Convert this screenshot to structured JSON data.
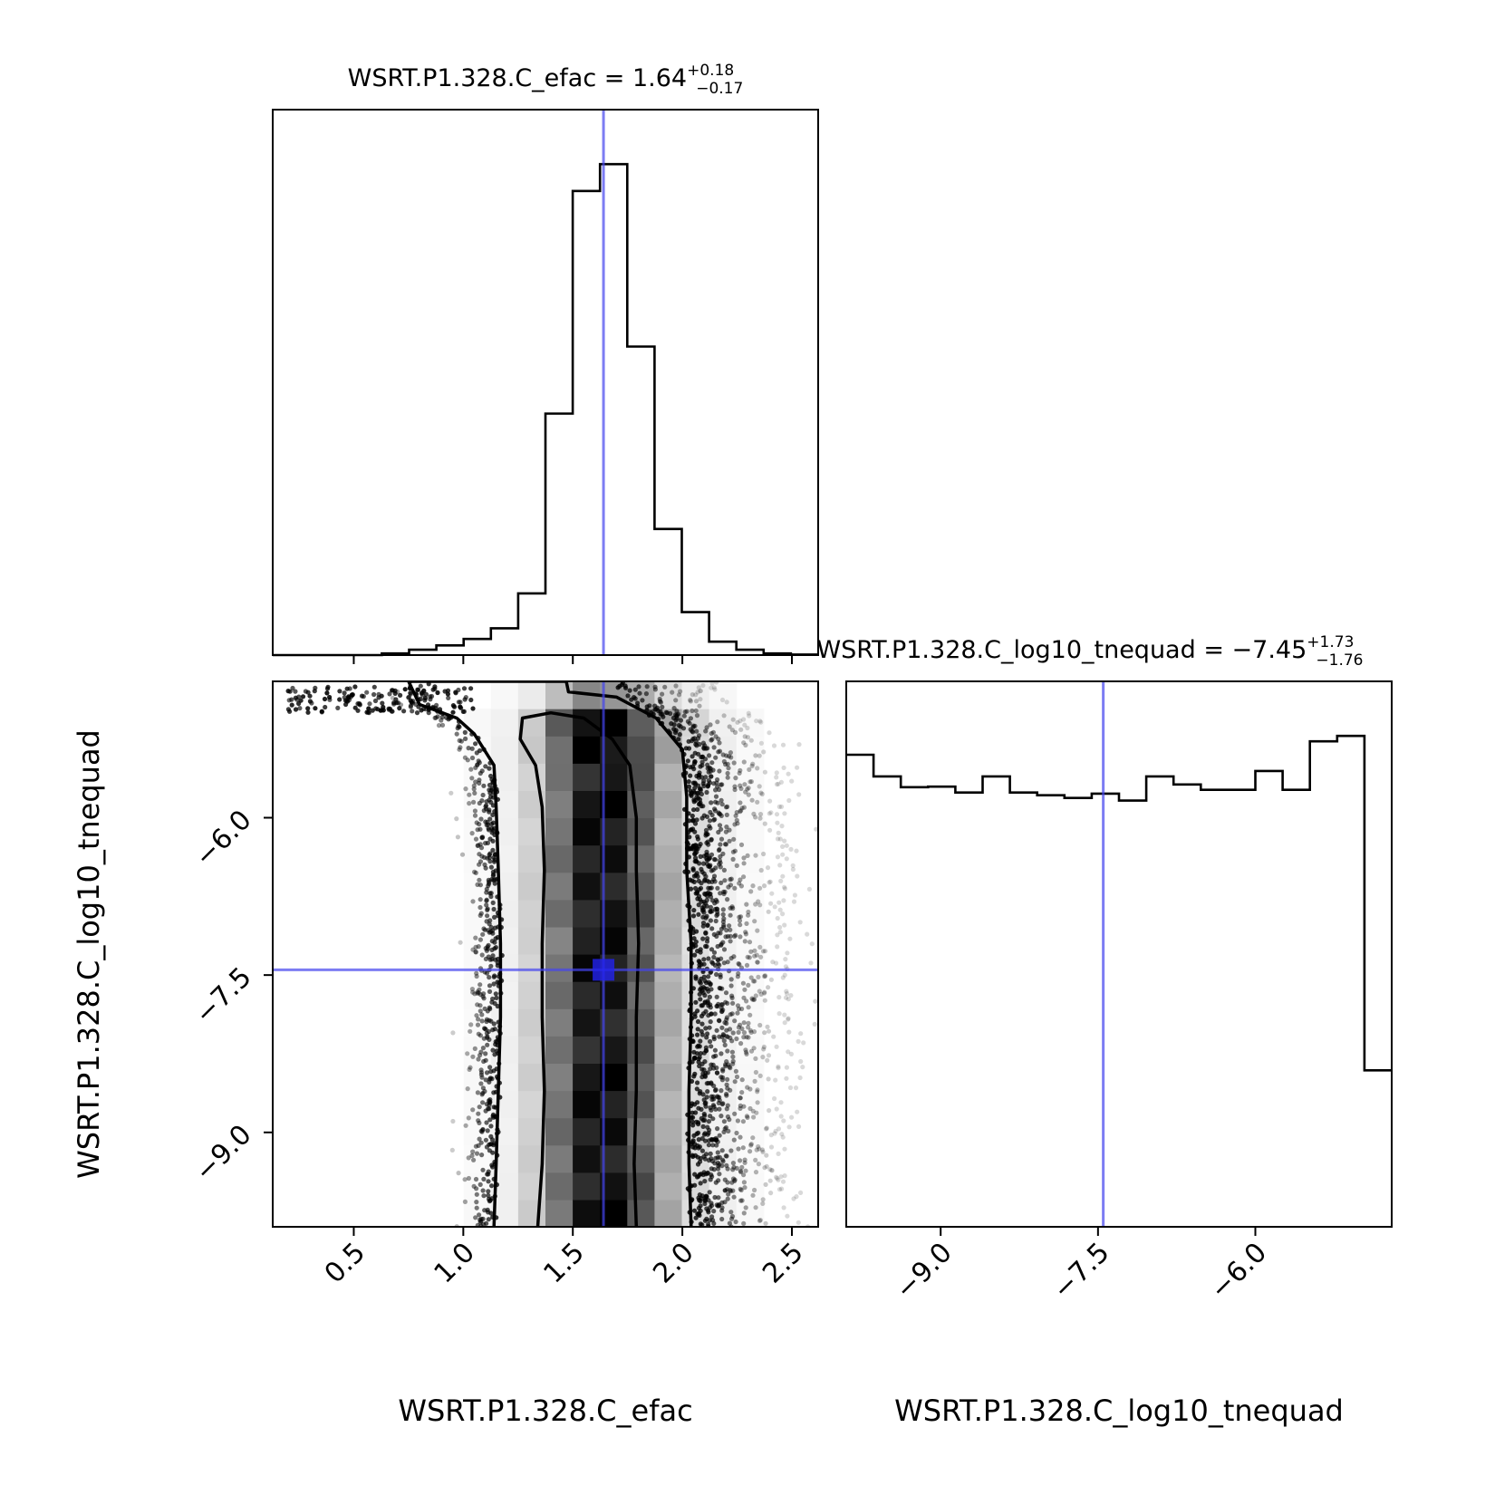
{
  "chart_data": {
    "type": "corner",
    "truth_color": "#4444ee",
    "titles": {
      "efac": {
        "label": "WSRT.P1.328.C_efac",
        "median": "1.64",
        "plus": "+0.18",
        "minus": "−0.17"
      },
      "tnequad": {
        "label": "WSRT.P1.328.C_log10_tnequad",
        "median": "−7.45",
        "plus": "+1.73",
        "minus": "−1.76"
      }
    },
    "axes": {
      "efac": {
        "label": "WSRT.P1.328.C_efac",
        "range": [
          0.13,
          2.62
        ],
        "ticks": [
          0.5,
          1.0,
          1.5,
          2.0,
          2.5
        ],
        "tick_labels": [
          "0.5",
          "1.0",
          "1.5",
          "2.0",
          "2.5"
        ]
      },
      "tnequad": {
        "label": "WSRT.P1.328.C_log10_tnequad",
        "range": [
          -9.9,
          -4.7
        ],
        "ticks": [
          -9.0,
          -7.5,
          -6.0
        ],
        "tick_labels": [
          "−9.0",
          "−7.5",
          "−6.0"
        ]
      }
    },
    "truths": {
      "efac": 1.64,
      "tnequad": -7.45
    },
    "hist_efac": {
      "bin_edges": [
        0.13,
        0.2545,
        0.379,
        0.5035,
        0.628,
        0.7525,
        0.877,
        1.0015,
        1.126,
        1.2505,
        1.375,
        1.4995,
        1.624,
        1.7485,
        1.873,
        1.9975,
        2.122,
        2.2465,
        2.371,
        2.4955,
        2.62
      ],
      "counts": [
        0,
        0,
        0,
        0,
        0.3,
        1.0,
        1.8,
        3.0,
        5.0,
        11.5,
        45.0,
        86.5,
        91.5,
        57.5,
        23.5,
        8.0,
        2.5,
        1.0,
        0.3,
        0.1
      ]
    },
    "hist_tnequad": {
      "bin_edges": [
        -9.9,
        -9.64,
        -9.38,
        -9.12,
        -8.86,
        -8.6,
        -8.34,
        -8.08,
        -7.82,
        -7.56,
        -7.3,
        -7.04,
        -6.78,
        -6.52,
        -6.26,
        -6.0,
        -5.74,
        -5.48,
        -5.22,
        -4.96,
        -4.7
      ],
      "counts": [
        87.5,
        83.5,
        81.5,
        81.6,
        80.5,
        83.5,
        80.5,
        80.0,
        79.5,
        80.3,
        79.0,
        83.5,
        82.0,
        81.0,
        81.0,
        84.5,
        81.0,
        90.0,
        91.0,
        29.0
      ]
    },
    "density2d": {
      "x_edges": [
        0.13,
        0.2545,
        0.379,
        0.5035,
        0.628,
        0.7525,
        0.877,
        1.0015,
        1.126,
        1.2505,
        1.375,
        1.4995,
        1.624,
        1.7485,
        1.873,
        1.9975,
        2.122,
        2.2465,
        2.371,
        2.4955,
        2.62
      ],
      "y_edges": [
        -9.9,
        -9.64,
        -9.38,
        -9.12,
        -8.86,
        -8.6,
        -8.34,
        -8.08,
        -7.82,
        -7.56,
        -7.3,
        -7.04,
        -6.78,
        -6.52,
        -6.26,
        -6.0,
        -5.74,
        -5.48,
        -5.22,
        -4.96,
        -4.7
      ],
      "x_profile": [
        0,
        0,
        0,
        0,
        0,
        0,
        0,
        0.01,
        0.03,
        0.13,
        0.5,
        0.93,
        0.96,
        0.62,
        0.26,
        0.09,
        0.03,
        0.01,
        0,
        0
      ],
      "y_profile": [
        0.95,
        0.9,
        0.88,
        0.88,
        0.87,
        0.9,
        0.87,
        0.86,
        0.86,
        0.87,
        0.85,
        0.9,
        0.88,
        0.87,
        0.87,
        0.91,
        0.87,
        0.97,
        0.98,
        0.35
      ]
    },
    "contours": [
      {
        "level": "inner",
        "points": [
          [
            1.34,
            -9.9
          ],
          [
            1.36,
            -9.3
          ],
          [
            1.37,
            -8.6
          ],
          [
            1.36,
            -7.9
          ],
          [
            1.36,
            -7.2
          ],
          [
            1.37,
            -6.5
          ],
          [
            1.36,
            -5.9
          ],
          [
            1.33,
            -5.5
          ],
          [
            1.26,
            -5.25
          ],
          [
            1.27,
            -5.05
          ],
          [
            1.4,
            -5.0
          ],
          [
            1.55,
            -5.05
          ],
          [
            1.68,
            -5.25
          ],
          [
            1.76,
            -5.5
          ],
          [
            1.79,
            -6.0
          ],
          [
            1.79,
            -6.5
          ],
          [
            1.8,
            -7.2
          ],
          [
            1.79,
            -7.9
          ],
          [
            1.79,
            -8.6
          ],
          [
            1.78,
            -9.3
          ],
          [
            1.79,
            -9.9
          ]
        ]
      },
      {
        "level": "outer",
        "points": [
          [
            1.14,
            -9.9
          ],
          [
            1.15,
            -9.3
          ],
          [
            1.16,
            -8.6
          ],
          [
            1.17,
            -7.9
          ],
          [
            1.17,
            -7.2
          ],
          [
            1.16,
            -6.5
          ],
          [
            1.15,
            -5.9
          ],
          [
            1.14,
            -5.5
          ],
          [
            1.05,
            -5.2
          ],
          [
            0.97,
            -5.05
          ],
          [
            0.8,
            -4.92
          ],
          [
            0.75,
            -4.7
          ],
          [
            1.47,
            -4.7
          ],
          [
            1.48,
            -4.8
          ],
          [
            1.7,
            -4.85
          ],
          [
            1.88,
            -5.05
          ],
          [
            2.0,
            -5.35
          ],
          [
            2.02,
            -5.8
          ],
          [
            2.02,
            -6.5
          ],
          [
            2.04,
            -7.2
          ],
          [
            2.04,
            -7.9
          ],
          [
            2.03,
            -8.6
          ],
          [
            2.03,
            -9.3
          ],
          [
            2.04,
            -9.9
          ]
        ]
      }
    ],
    "scatter_seed": 7
  }
}
